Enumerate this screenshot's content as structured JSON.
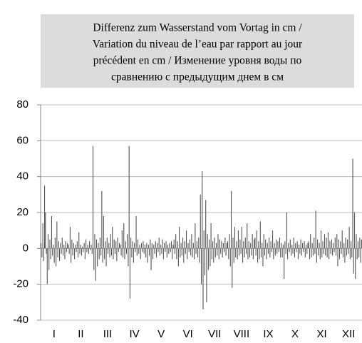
{
  "chart_data": {
    "type": "bar",
    "title": [
      "Differenz zum Wasserstand vom Vortag in cm /",
      "Variation du niveau de l’eau par rapport au jour",
      "précédent en cm / Изменение уровня воды по",
      "сравнению с предыдущим днем в см"
    ],
    "ylim": [
      -40,
      80
    ],
    "yticks": [
      -40,
      -20,
      0,
      20,
      40,
      60,
      80
    ],
    "grid": true,
    "color": "#555555",
    "months": [
      {
        "label": "I",
        "values": [
          3,
          -5,
          14,
          -7,
          35,
          20,
          -3,
          -20,
          8,
          -12,
          5,
          -6,
          18,
          -4,
          2,
          -8,
          6,
          -10,
          15,
          -5,
          4,
          -7,
          3,
          -3,
          6,
          -4,
          2,
          -6,
          4,
          -2,
          3
        ]
      },
      {
        "label": "II",
        "values": [
          2,
          -3,
          12,
          -8,
          5,
          -4,
          3,
          -6,
          2,
          -2,
          4,
          -5,
          9,
          -3,
          2,
          -4,
          1,
          -2,
          3,
          -6,
          5,
          -2,
          2,
          -3,
          4,
          -1,
          2,
          -3
        ]
      },
      {
        "label": "III",
        "values": [
          57,
          -12,
          8,
          -18,
          5,
          -10,
          3,
          -6,
          6,
          -4,
          32,
          -8,
          18,
          -6,
          4,
          -10,
          6,
          -3,
          3,
          -5,
          8,
          -4,
          12,
          -6,
          5,
          -3,
          4,
          -7,
          6,
          -2,
          3
        ]
      },
      {
        "label": "IV",
        "values": [
          2,
          -4,
          10,
          -5,
          14,
          -6,
          4,
          -3,
          8,
          -10,
          57,
          -28,
          6,
          -5,
          4,
          -8,
          3,
          -2,
          18,
          -4,
          5,
          -3,
          2,
          -6,
          3,
          -2,
          4,
          -3,
          2,
          -5
        ]
      },
      {
        "label": "V",
        "values": [
          3,
          -8,
          2,
          -4,
          5,
          -12,
          3,
          -6,
          2,
          -3,
          4,
          -5,
          3,
          -2,
          6,
          -4,
          2,
          -3,
          5,
          -6,
          3,
          -2,
          4,
          -5,
          2,
          -3,
          3,
          -2,
          4,
          -6,
          2
        ]
      },
      {
        "label": "VI",
        "values": [
          5,
          -3,
          8,
          -6,
          4,
          -10,
          12,
          -5,
          3,
          -4,
          6,
          -8,
          4,
          -3,
          10,
          -6,
          3,
          -2,
          5,
          -4,
          8,
          -5,
          3,
          -6,
          14,
          -3,
          4,
          -5,
          6,
          -8
        ]
      },
      {
        "label": "VII",
        "values": [
          30,
          -20,
          43,
          -34,
          10,
          -15,
          27,
          -30,
          8,
          -12,
          5,
          -10,
          14,
          -6,
          4,
          -8,
          6,
          -5,
          3,
          -4,
          8,
          -6,
          5,
          -3,
          4,
          -5,
          3,
          -2,
          6,
          -4,
          3
        ]
      },
      {
        "label": "VIII",
        "values": [
          4,
          -6,
          8,
          -10,
          32,
          -22,
          6,
          -8,
          12,
          -5,
          4,
          -6,
          10,
          -4,
          5,
          -3,
          12,
          -8,
          4,
          -5,
          6,
          -3,
          14,
          -6,
          4,
          -5,
          3,
          -4,
          8,
          -6,
          5
        ]
      },
      {
        "label": "IX",
        "values": [
          6,
          -4,
          10,
          -8,
          4,
          -6,
          15,
          -5,
          3,
          -10,
          8,
          -4,
          5,
          -6,
          3,
          -3,
          6,
          -5,
          4,
          -2,
          10,
          -6,
          3,
          -4,
          5,
          -3,
          4,
          -2,
          6,
          -5
        ]
      },
      {
        "label": "X",
        "values": [
          3,
          -5,
          2,
          -17,
          4,
          -3,
          20,
          -6,
          3,
          -2,
          5,
          -4,
          2,
          -3,
          6,
          -5,
          3,
          -2,
          4,
          -6,
          2,
          -3,
          5,
          -4,
          3,
          -2,
          4,
          -5,
          2,
          -3,
          3
        ]
      },
      {
        "label": "XI",
        "values": [
          4,
          -6,
          8,
          -5,
          3,
          -4,
          6,
          -3,
          21,
          -8,
          5,
          -4,
          3,
          -6,
          10,
          -5,
          4,
          -3,
          8,
          -4,
          6,
          -5,
          9,
          -6,
          4,
          -3,
          5,
          -4,
          3,
          -2
        ]
      },
      {
        "label": "XII",
        "values": [
          6,
          -4,
          8,
          -10,
          5,
          -6,
          4,
          -3,
          10,
          -5,
          3,
          -8,
          6,
          -4,
          5,
          -3,
          12,
          -6,
          4,
          -5,
          50,
          -14,
          20,
          -17,
          8,
          -6,
          4,
          -5,
          6,
          -8,
          5
        ]
      }
    ]
  }
}
